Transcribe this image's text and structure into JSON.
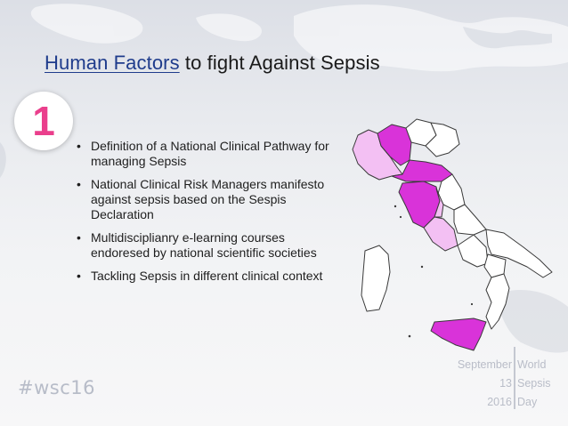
{
  "slide": {
    "title_accent": "Human Factors",
    "title_rest": " to fight Against Sepsis",
    "badge_number": "1",
    "bullets": [
      "Definition of a National Clinical Pathway for managing Sepsis",
      "National Clinical Risk Managers manifesto against sepsis based on the Sespis Declaration",
      "Multidisciplianry  e-learning courses endoresed by national scientific societies",
      "Tackling Sepsis in different clinical context"
    ],
    "hashtag": "#wsc16",
    "logo": {
      "left_lines": [
        "September",
        "13",
        "2016"
      ],
      "right_lines": [
        "World",
        "Sepsis",
        "Day"
      ]
    }
  },
  "colors": {
    "accent_title": "#1f3c8c",
    "badge_number": "#ea3f8c",
    "region_dark": "#d933d9",
    "region_medium": "#e77de7",
    "region_light": "#f3c0f3",
    "region_white": "#ffffff"
  },
  "icons": {
    "map": "italy-regions-map",
    "background": "world-map-background"
  }
}
